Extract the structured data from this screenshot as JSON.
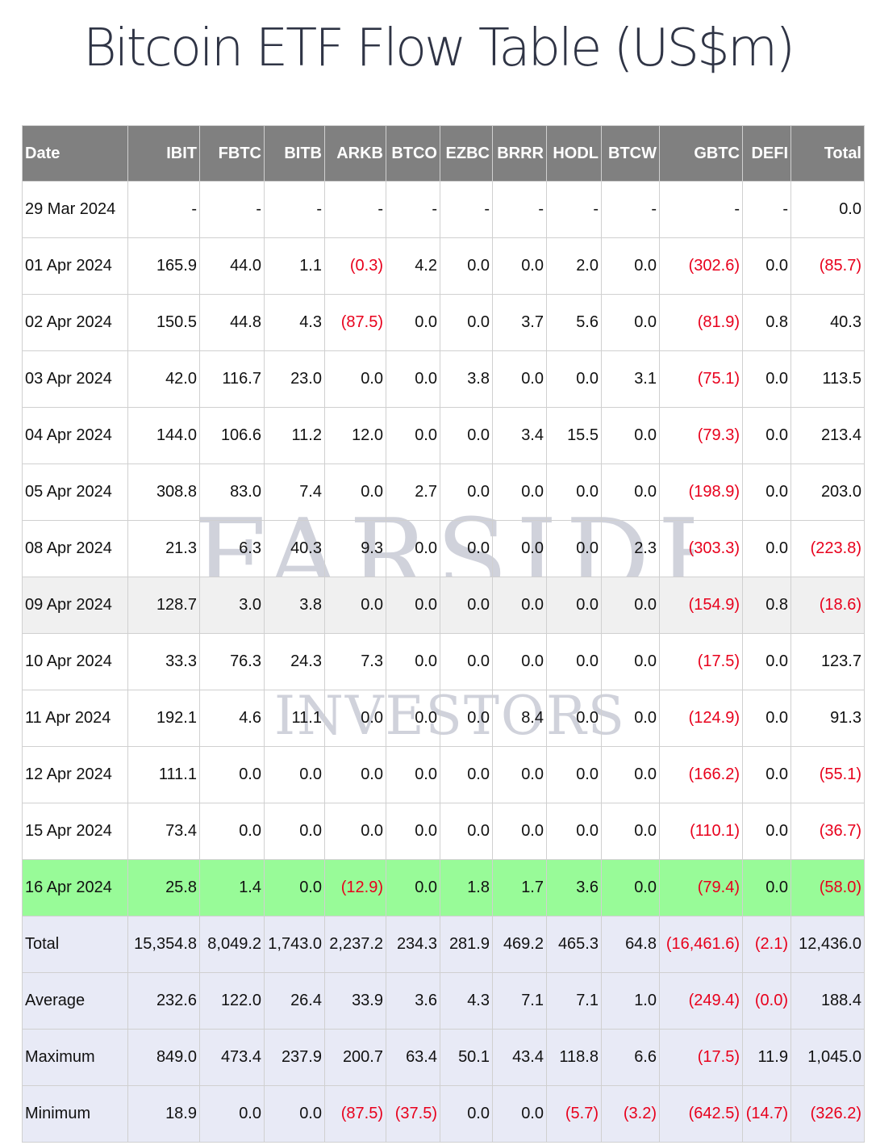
{
  "title": "Bitcoin ETF Flow Table (US$m)",
  "watermark": {
    "line1": "FARSIDE",
    "line2": "INVESTORS"
  },
  "columns": [
    "Date",
    "IBIT",
    "FBTC",
    "BITB",
    "ARKB",
    "BTCO",
    "EZBC",
    "BRRR",
    "HODL",
    "BTCW",
    "GBTC",
    "DEFI",
    "Total"
  ],
  "rows": [
    {
      "style": "normal",
      "cells": [
        "29 Mar 2024",
        "-",
        "-",
        "-",
        "-",
        "-",
        "-",
        "-",
        "-",
        "-",
        "-",
        "-",
        "0.0"
      ]
    },
    {
      "style": "normal",
      "cells": [
        "01 Apr 2024",
        "165.9",
        "44.0",
        "1.1",
        "(0.3)",
        "4.2",
        "0.0",
        "0.0",
        "2.0",
        "0.0",
        "(302.6)",
        "0.0",
        "(85.7)"
      ]
    },
    {
      "style": "normal",
      "cells": [
        "02 Apr 2024",
        "150.5",
        "44.8",
        "4.3",
        "(87.5)",
        "0.0",
        "0.0",
        "3.7",
        "5.6",
        "0.0",
        "(81.9)",
        "0.8",
        "40.3"
      ]
    },
    {
      "style": "normal",
      "cells": [
        "03 Apr 2024",
        "42.0",
        "116.7",
        "23.0",
        "0.0",
        "0.0",
        "3.8",
        "0.0",
        "0.0",
        "3.1",
        "(75.1)",
        "0.0",
        "113.5"
      ]
    },
    {
      "style": "normal",
      "cells": [
        "04 Apr 2024",
        "144.0",
        "106.6",
        "11.2",
        "12.0",
        "0.0",
        "0.0",
        "3.4",
        "15.5",
        "0.0",
        "(79.3)",
        "0.0",
        "213.4"
      ]
    },
    {
      "style": "normal",
      "cells": [
        "05 Apr 2024",
        "308.8",
        "83.0",
        "7.4",
        "0.0",
        "2.7",
        "0.0",
        "0.0",
        "0.0",
        "0.0",
        "(198.9)",
        "0.0",
        "203.0"
      ]
    },
    {
      "style": "normal",
      "cells": [
        "08 Apr 2024",
        "21.3",
        "6.3",
        "40.3",
        "9.3",
        "0.0",
        "0.0",
        "0.0",
        "0.0",
        "2.3",
        "(303.3)",
        "0.0",
        "(223.8)"
      ]
    },
    {
      "style": "alt",
      "cells": [
        "09 Apr 2024",
        "128.7",
        "3.0",
        "3.8",
        "0.0",
        "0.0",
        "0.0",
        "0.0",
        "0.0",
        "0.0",
        "(154.9)",
        "0.8",
        "(18.6)"
      ]
    },
    {
      "style": "normal",
      "cells": [
        "10 Apr 2024",
        "33.3",
        "76.3",
        "24.3",
        "7.3",
        "0.0",
        "0.0",
        "0.0",
        "0.0",
        "0.0",
        "(17.5)",
        "0.0",
        "123.7"
      ]
    },
    {
      "style": "normal",
      "cells": [
        "11 Apr 2024",
        "192.1",
        "4.6",
        "11.1",
        "0.0",
        "0.0",
        "0.0",
        "8.4",
        "0.0",
        "0.0",
        "(124.9)",
        "0.0",
        "91.3"
      ]
    },
    {
      "style": "normal",
      "cells": [
        "12 Apr 2024",
        "111.1",
        "0.0",
        "0.0",
        "0.0",
        "0.0",
        "0.0",
        "0.0",
        "0.0",
        "0.0",
        "(166.2)",
        "0.0",
        "(55.1)"
      ]
    },
    {
      "style": "normal",
      "cells": [
        "15 Apr 2024",
        "73.4",
        "0.0",
        "0.0",
        "0.0",
        "0.0",
        "0.0",
        "0.0",
        "0.0",
        "0.0",
        "(110.1)",
        "0.0",
        "(36.7)"
      ]
    },
    {
      "style": "hl",
      "cells": [
        "16 Apr 2024",
        "25.8",
        "1.4",
        "0.0",
        "(12.9)",
        "0.0",
        "1.8",
        "1.7",
        "3.6",
        "0.0",
        "(79.4)",
        "0.0",
        "(58.0)"
      ]
    },
    {
      "style": "sum",
      "cells": [
        "Total",
        "15,354.8",
        "8,049.2",
        "1,743.0",
        "2,237.2",
        "234.3",
        "281.9",
        "469.2",
        "465.3",
        "64.8",
        "(16,461.6)",
        "(2.1)",
        "12,436.0"
      ]
    },
    {
      "style": "sum",
      "cells": [
        "Average",
        "232.6",
        "122.0",
        "26.4",
        "33.9",
        "3.6",
        "4.3",
        "7.1",
        "7.1",
        "1.0",
        "(249.4)",
        "(0.0)",
        "188.4"
      ]
    },
    {
      "style": "sum",
      "cells": [
        "Maximum",
        "849.0",
        "473.4",
        "237.9",
        "200.7",
        "63.4",
        "50.1",
        "43.4",
        "118.8",
        "6.6",
        "(17.5)",
        "11.9",
        "1,045.0"
      ]
    },
    {
      "style": "sum",
      "cells": [
        "Minimum",
        "18.9",
        "0.0",
        "0.0",
        "(87.5)",
        "(37.5)",
        "0.0",
        "0.0",
        "(5.7)",
        "(3.2)",
        "(642.5)",
        "(14.7)",
        "(326.2)"
      ]
    }
  ],
  "colors": {
    "negative": "#e8001c",
    "header_bg": "#808080",
    "highlight_row": "#98fb98",
    "summary_bg": "#e8eaf6",
    "alt_row": "#f0f0f0"
  }
}
